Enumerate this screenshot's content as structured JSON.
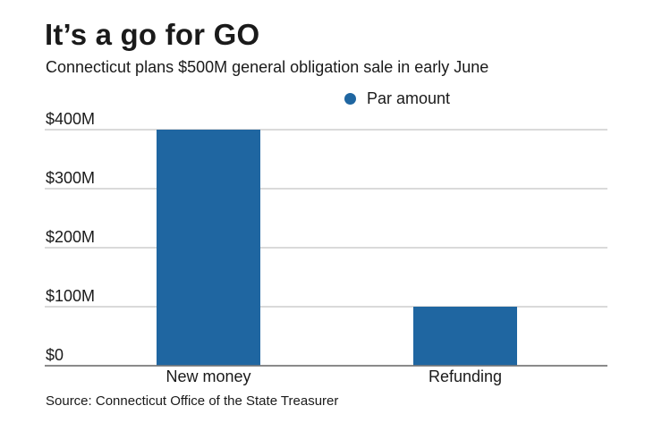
{
  "header": {
    "title": "It’s a go for GO",
    "subtitle": "Connecticut plans $500M general obligation sale in early June"
  },
  "source": "Source: Connecticut Office of the State Treasurer",
  "colors": {
    "bar": "#1f66a1",
    "grid": "#b5b5b5",
    "baseline": "#7a7a7a"
  },
  "chart_data": {
    "type": "bar",
    "categories": [
      "New money",
      "Refunding"
    ],
    "series": [
      {
        "name": "Par amount",
        "values": [
          400,
          100
        ]
      }
    ],
    "unit": "millions of dollars",
    "ylim": [
      0,
      400
    ],
    "yticks": [
      0,
      100,
      200,
      300,
      400
    ],
    "ytick_labels": [
      "$0",
      "$100M",
      "$200M",
      "$300M",
      "$400M"
    ],
    "grid": true,
    "legend": "top-right"
  }
}
